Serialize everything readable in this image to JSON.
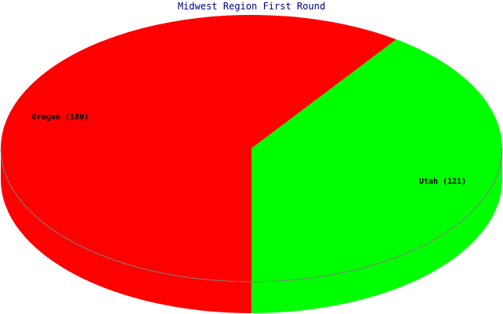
{
  "chart_data": {
    "type": "pie",
    "title": "Midwest Region First Round",
    "three_d": true,
    "slices": [
      {
        "name": "Oregon",
        "value": 180,
        "label": "Oregon (180)",
        "color": "#ff0000"
      },
      {
        "name": "Utah",
        "value": 121,
        "label": "Utah (121)",
        "color": "#00ff00"
      }
    ],
    "edge_color": "#808080"
  }
}
